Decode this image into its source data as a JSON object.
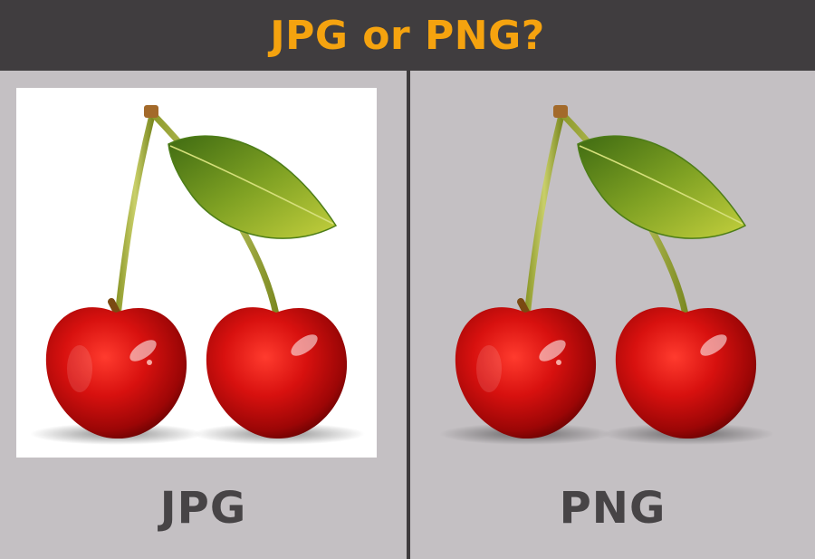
{
  "header": {
    "title": "JPG or PNG?"
  },
  "colors": {
    "header_bg": "#403d3f",
    "title": "#f5a30f",
    "panel_bg": "#c4c0c3",
    "label": "#474446",
    "jpg_background": "#ffffff"
  },
  "panels": [
    {
      "label": "JPG",
      "image": "cherries-with-white-background"
    },
    {
      "label": "PNG",
      "image": "cherries-with-transparent-background"
    }
  ]
}
